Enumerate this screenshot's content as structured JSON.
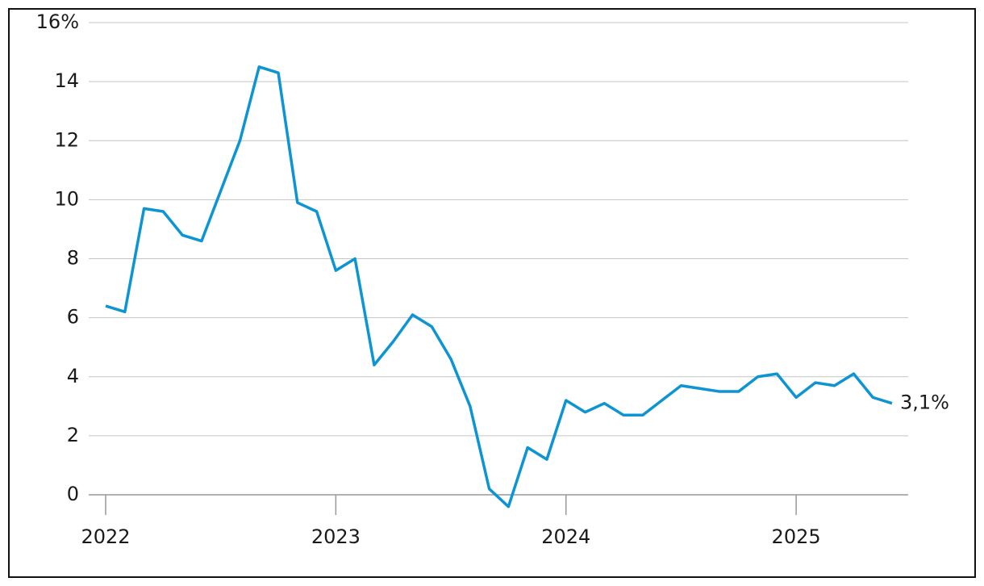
{
  "chart_data": {
    "type": "line",
    "categories": [
      "2022",
      null,
      null,
      null,
      null,
      null,
      null,
      null,
      null,
      null,
      null,
      null,
      "2023",
      null,
      null,
      null,
      null,
      null,
      null,
      null,
      null,
      null,
      null,
      null,
      "2024",
      null,
      null,
      null,
      null,
      null,
      null,
      null,
      null,
      null,
      null,
      null,
      "2025",
      null,
      null,
      null,
      null,
      null
    ],
    "series": [
      {
        "color": "#0d94d2",
        "values": [
          6.4,
          6.2,
          9.7,
          9.6,
          8.8,
          8.6,
          10.3,
          12.0,
          14.5,
          14.3,
          9.9,
          9.6,
          7.6,
          8.0,
          4.4,
          5.2,
          6.1,
          5.7,
          4.6,
          3.0,
          0.2,
          -0.4,
          1.6,
          1.2,
          3.2,
          2.8,
          3.1,
          2.7,
          2.7,
          3.2,
          3.7,
          3.6,
          3.5,
          3.5,
          4.0,
          4.1,
          3.3,
          3.8,
          3.7,
          4.1,
          3.3,
          3.1
        ]
      }
    ],
    "annotation": "3,1%",
    "ylim": [
      -1,
      16
    ],
    "yticks": [
      0,
      2,
      4,
      6,
      8,
      10,
      12,
      14,
      {
        "value": 16,
        "label": "16%"
      }
    ],
    "grid": true
  }
}
